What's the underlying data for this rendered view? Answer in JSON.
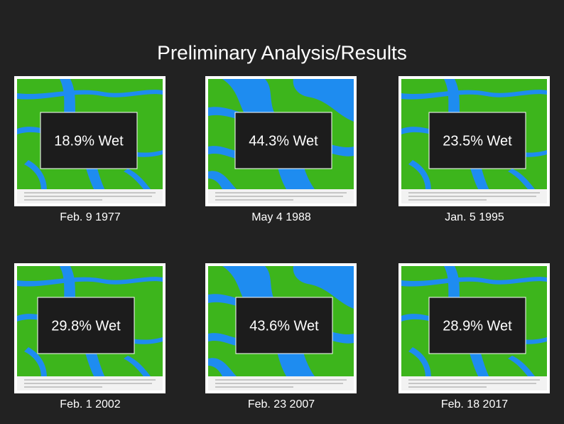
{
  "title": "Preliminary Analysis/Results",
  "panels": [
    {
      "label": "18.9% Wet",
      "date": "Feb. 9 1977"
    },
    {
      "label": "44.3% Wet",
      "date": "May 4 1988"
    },
    {
      "label": "23.5% Wet",
      "date": "Jan. 5 1995"
    },
    {
      "label": "29.8% Wet",
      "date": "Feb. 1 2002"
    },
    {
      "label": "43.6% Wet",
      "date": "Feb. 23 2007"
    },
    {
      "label": "28.9% Wet",
      "date": "Feb. 18 2017"
    }
  ]
}
